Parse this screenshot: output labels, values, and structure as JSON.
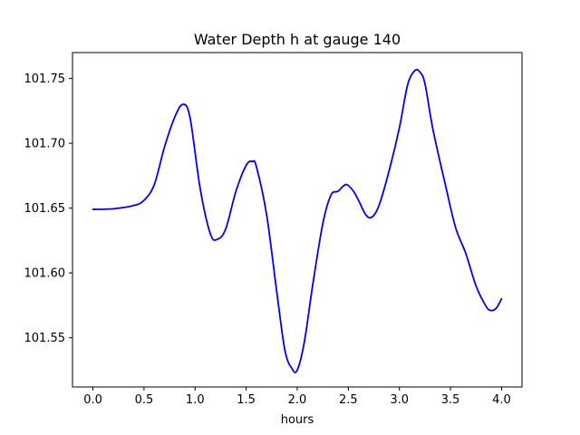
{
  "chart_data": {
    "type": "line",
    "title": "Water Depth h at gauge 140",
    "xlabel": "hours",
    "ylabel": "",
    "xlim": [
      -0.2,
      4.2
    ],
    "ylim": [
      101.512,
      101.77
    ],
    "grid": false,
    "x_ticks": [
      0.0,
      0.5,
      1.0,
      1.5,
      2.0,
      2.5,
      3.0,
      3.5,
      4.0
    ],
    "x_tick_labels": [
      "0.0",
      "0.5",
      "1.0",
      "1.5",
      "2.0",
      "2.5",
      "3.0",
      "3.5",
      "4.0"
    ],
    "y_ticks": [
      101.55,
      101.6,
      101.65,
      101.7,
      101.75
    ],
    "y_tick_labels": [
      "101.55",
      "101.60",
      "101.65",
      "101.70",
      "101.75"
    ],
    "series": [
      {
        "color": "#0000ff",
        "x": [
          0.0,
          0.2,
          0.4,
          0.5,
          0.6,
          0.7,
          0.8,
          0.88,
          0.95,
          1.05,
          1.15,
          1.22,
          1.3,
          1.4,
          1.5,
          1.56,
          1.6,
          1.7,
          1.8,
          1.88,
          1.95,
          2.0,
          2.07,
          2.15,
          2.25,
          2.33,
          2.4,
          2.45,
          2.49,
          2.55,
          2.6,
          2.67,
          2.73,
          2.8,
          2.9,
          3.0,
          3.08,
          3.15,
          3.2,
          3.25,
          3.33,
          3.45,
          3.55,
          3.65,
          3.75,
          3.85,
          3.9,
          3.95,
          4.0
        ],
        "y": [
          101.649,
          101.6495,
          101.652,
          101.656,
          101.668,
          101.697,
          101.72,
          101.73,
          101.72,
          101.665,
          101.63,
          101.626,
          101.634,
          101.663,
          101.683,
          101.686,
          101.682,
          101.645,
          101.585,
          101.54,
          101.526,
          101.525,
          101.547,
          101.59,
          101.638,
          101.66,
          101.663,
          101.667,
          101.668,
          101.663,
          101.656,
          101.645,
          101.643,
          101.652,
          101.679,
          101.712,
          101.745,
          101.756,
          101.755,
          101.746,
          101.71,
          101.668,
          101.635,
          101.615,
          101.59,
          101.574,
          101.571,
          101.573,
          101.58
        ]
      }
    ]
  }
}
